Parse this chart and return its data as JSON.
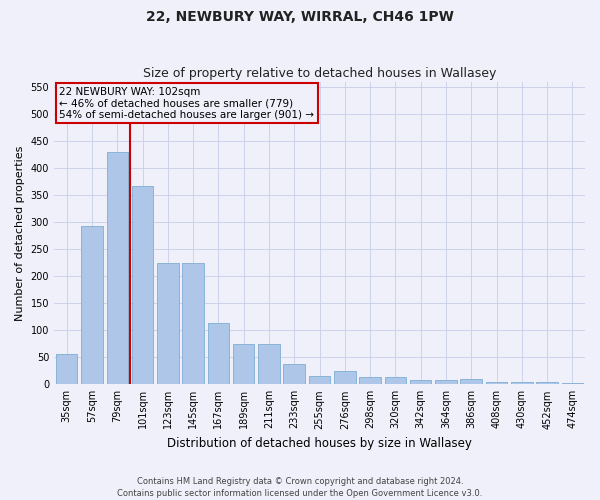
{
  "title1": "22, NEWBURY WAY, WIRRAL, CH46 1PW",
  "title2": "Size of property relative to detached houses in Wallasey",
  "xlabel": "Distribution of detached houses by size in Wallasey",
  "ylabel": "Number of detached properties",
  "footnote": "Contains HM Land Registry data © Crown copyright and database right 2024.\nContains public sector information licensed under the Open Government Licence v3.0.",
  "categories": [
    "35sqm",
    "57sqm",
    "79sqm",
    "101sqm",
    "123sqm",
    "145sqm",
    "167sqm",
    "189sqm",
    "211sqm",
    "233sqm",
    "255sqm",
    "276sqm",
    "298sqm",
    "320sqm",
    "342sqm",
    "364sqm",
    "386sqm",
    "408sqm",
    "430sqm",
    "452sqm",
    "474sqm"
  ],
  "values": [
    57,
    293,
    430,
    367,
    225,
    225,
    113,
    75,
    75,
    38,
    15,
    25,
    13,
    13,
    8,
    8,
    10,
    5,
    5,
    5,
    3
  ],
  "bar_color": "#aec6e8",
  "bar_edge_color": "#7eaed4",
  "bar_width": 0.85,
  "highlight_index": 3,
  "highlight_line_color": "#cc0000",
  "annotation_line1": "22 NEWBURY WAY: 102sqm",
  "annotation_line2": "← 46% of detached houses are smaller (779)",
  "annotation_line3": "54% of semi-detached houses are larger (901) →",
  "annotation_box_color": "#cc0000",
  "annotation_text_color": "#000000",
  "ylim": [
    0,
    560
  ],
  "yticks": [
    0,
    50,
    100,
    150,
    200,
    250,
    300,
    350,
    400,
    450,
    500,
    550
  ],
  "background_color": "#f0f0fa",
  "grid_color": "#c8ceea",
  "title1_fontsize": 10,
  "title2_fontsize": 9,
  "xlabel_fontsize": 8.5,
  "ylabel_fontsize": 8,
  "tick_fontsize": 7,
  "annotation_fontsize": 7.5,
  "footnote_fontsize": 6
}
